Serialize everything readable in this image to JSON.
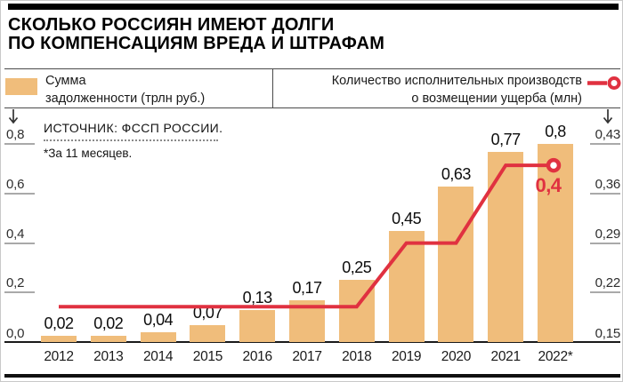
{
  "header": {
    "title_lines": [
      "СКОЛЬКО РОССИЯН ИМЕЮТ ДОЛГИ",
      "ПО КОМПЕНСАЦИЯМ ВРЕДА И ШТРАФАМ"
    ]
  },
  "legend": {
    "bars": {
      "label_lines": [
        "Сумма",
        "задолженности (трлн руб.)"
      ],
      "swatch_icon": "tan-square-icon"
    },
    "line": {
      "label_lines": [
        "Количество исполнительных производств",
        "о возмещении ущерба (млн)"
      ],
      "marker_icon": "red-line-with-ring-icon"
    }
  },
  "source": {
    "text": "ИСТОЧНИК: ФССП РОССИИ.",
    "footnote": "*За 11 месяцев."
  },
  "icons": {
    "left_axis": "down-arrow-icon",
    "right_axis": "down-arrow-icon"
  },
  "colors": {
    "bar_tan": "#F0BD7B",
    "accent_red": "#E03140",
    "axis_tick_gray": "#A9A9A9",
    "black": "#000000"
  },
  "chart_data": {
    "type": "bar",
    "title": "СКОЛЬКО РОССИЯН ИМЕЮТ ДОЛГИ ПО КОМПЕНСАЦИЯМ ВРЕДА И ШТРАФАМ",
    "categories": [
      "2012",
      "2013",
      "2014",
      "2015",
      "2016",
      "2017",
      "2018",
      "2019",
      "2020",
      "2021",
      "2022*"
    ],
    "series": [
      {
        "name": "Сумма задолженности (трлн руб.)",
        "type": "bar",
        "axis": "left",
        "color": "#F0BD7B",
        "values": [
          0.02,
          0.02,
          0.04,
          0.07,
          0.13,
          0.17,
          0.25,
          0.45,
          0.63,
          0.77,
          0.8
        ],
        "labels": [
          "0,02",
          "0,02",
          "0,04",
          "0,07",
          "0,13",
          "0,17",
          "0,25",
          "0,45",
          "0,63",
          "0,77",
          "0,8"
        ]
      },
      {
        "name": "Количество исполнительных производств о возмещении ущерба (млн)",
        "type": "line",
        "axis": "right",
        "color": "#E03140",
        "values": [
          0.2,
          0.2,
          0.2,
          0.2,
          0.2,
          0.2,
          0.2,
          0.29,
          0.29,
          0.4,
          0.4
        ],
        "end_label": "0,4"
      }
    ],
    "left_axis": {
      "label": "трлн руб.",
      "ticks": [
        "0,8",
        "0,6",
        "0,4",
        "0,2",
        "0,0"
      ],
      "tick_values": [
        0.8,
        0.6,
        0.4,
        0.2,
        0.0
      ],
      "range": [
        0,
        0.8
      ]
    },
    "right_axis": {
      "label": "млн",
      "ticks": [
        "0,43",
        "0,36",
        "0,29",
        "0,22",
        "0,15"
      ],
      "tick_values": [
        0.43,
        0.36,
        0.29,
        0.22,
        0.15
      ],
      "range": [
        0.15,
        0.43
      ]
    },
    "grid": false,
    "legend_position": "top"
  }
}
